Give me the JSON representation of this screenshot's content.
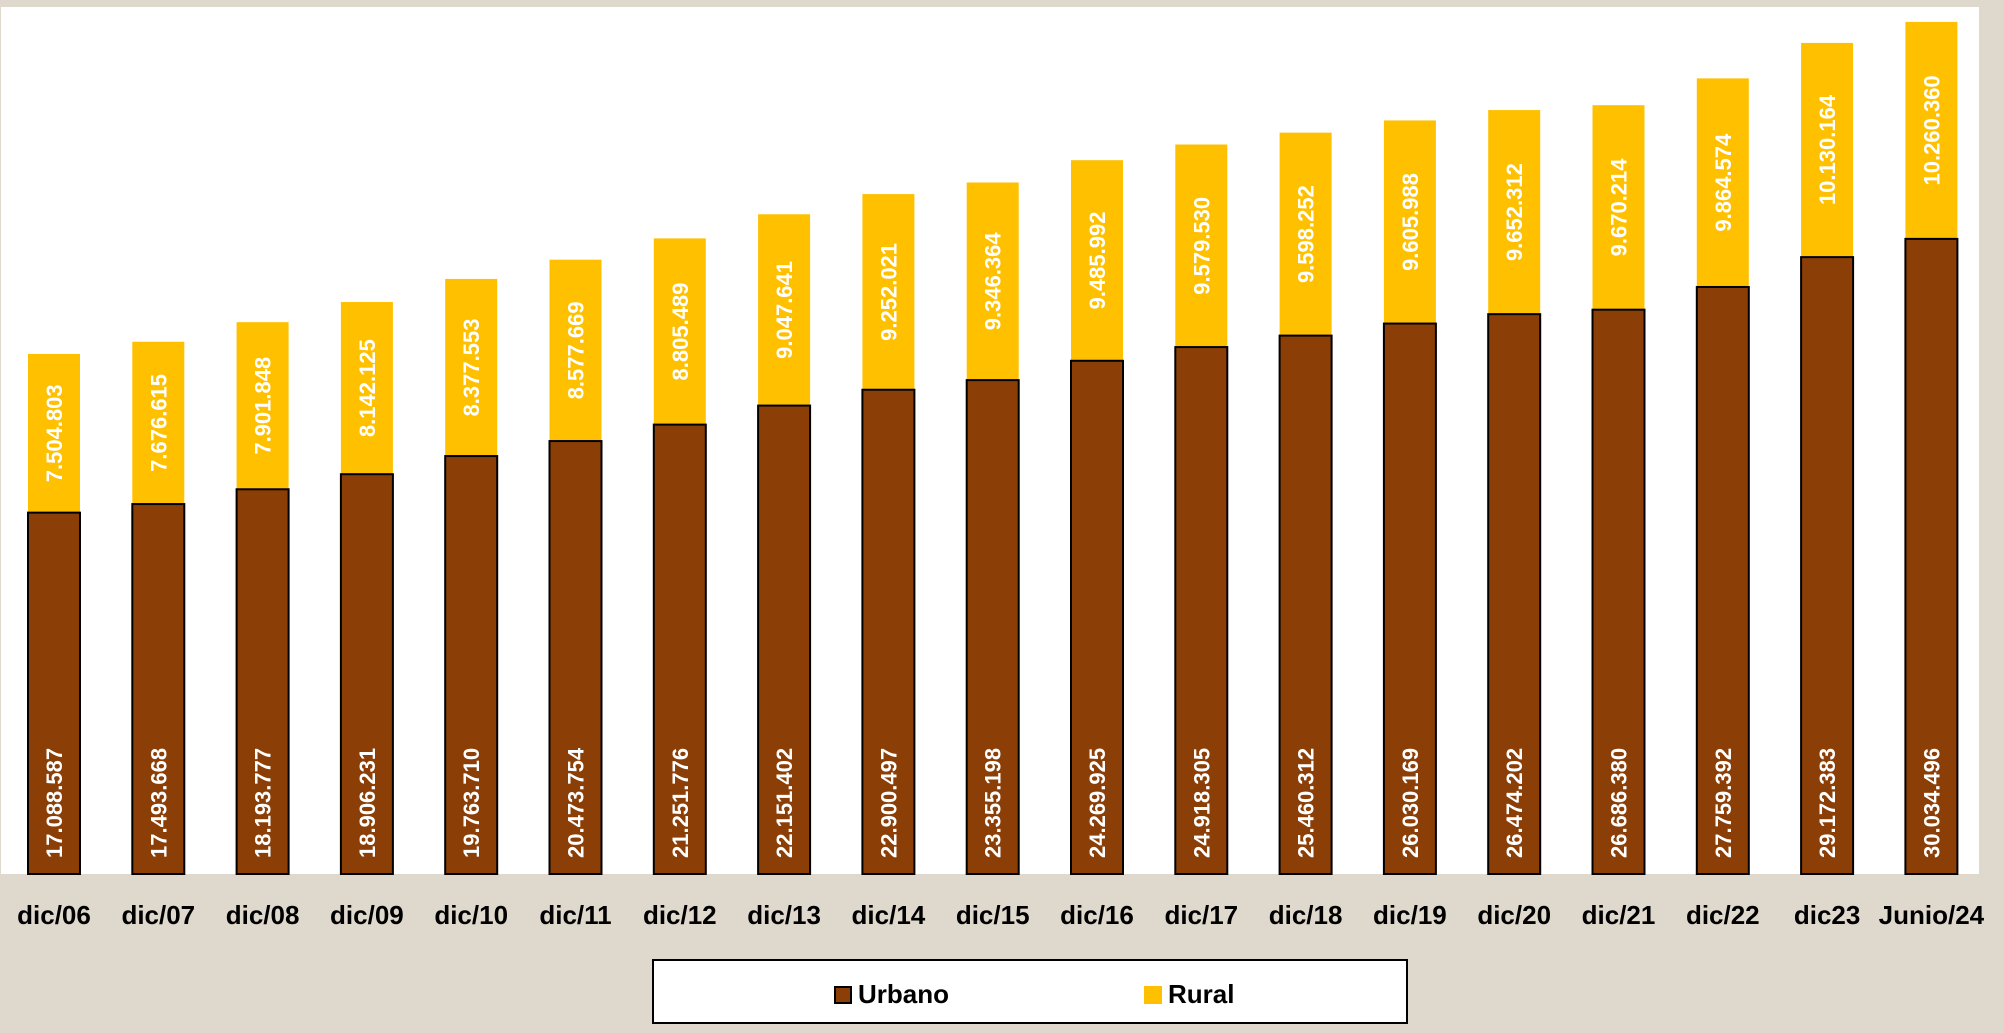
{
  "chart_data": {
    "type": "bar",
    "stacked": true,
    "categories": [
      "dic/06",
      "dic/07",
      "dic/08",
      "dic/09",
      "dic/10",
      "dic/11",
      "dic/12",
      "dic/13",
      "dic/14",
      "dic/15",
      "dic/16",
      "dic/17",
      "dic/18",
      "dic/19",
      "dic/20",
      "dic/21",
      "dic/22",
      "dic23",
      "Junio/24"
    ],
    "series": [
      {
        "name": "Urbano",
        "color": "#8b3e06",
        "values": [
          17088587,
          17493668,
          18193777,
          18906231,
          19763710,
          20473754,
          21251776,
          22151402,
          22900497,
          23355198,
          24269925,
          24918305,
          25460312,
          26030169,
          26474202,
          26686380,
          27759392,
          29172383,
          30034496
        ],
        "labels": [
          "17.088.587",
          "17.493.668",
          "18.193.777",
          "18.906.231",
          "19.763.710",
          "20.473.754",
          "21.251.776",
          "22.151.402",
          "22.900.497",
          "23.355.198",
          "24.269.925",
          "24.918.305",
          "25.460.312",
          "26.030.169",
          "26.474.202",
          "26.686.380",
          "27.759.392",
          "29.172.383",
          "30.034.496"
        ]
      },
      {
        "name": "Rural",
        "color": "#ffc000",
        "values": [
          7504803,
          7676615,
          7901848,
          8142125,
          8377553,
          8577669,
          8805489,
          9047641,
          9252021,
          9346364,
          9485992,
          9579530,
          9598252,
          9605988,
          9652312,
          9670214,
          9864574,
          10130164,
          10260360
        ],
        "labels": [
          "7.504.803",
          "7.676.615",
          "7.901.848",
          "8.142.125",
          "8.377.553",
          "8.577.669",
          "8.805.489",
          "9.047.641",
          "9.252.021",
          "9.346.364",
          "9.485.992",
          "9.579.530",
          "9.598.252",
          "9.605.988",
          "9.652.312",
          "9.670.214",
          "9.864.574",
          "10.130.164",
          "10.260.360"
        ]
      }
    ],
    "ylim": [
      0,
      41000000
    ],
    "grid": false,
    "legend": "bottom",
    "background_color": "#ded8cd",
    "plot_background_color": "#ffffff",
    "urban_label_color": "#ffffff",
    "rural_label_color": "#ffffff"
  },
  "legend": {
    "urbano_label": "Urbano",
    "rural_label": "Rural"
  }
}
